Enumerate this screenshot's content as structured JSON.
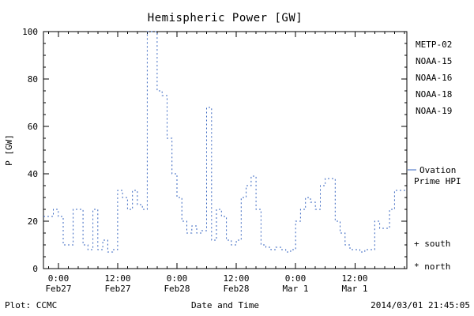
{
  "chart_data": {
    "type": "line",
    "step": true,
    "line_style": "dashed",
    "grid": false,
    "title": "Hemispheric Power [GW]",
    "xlabel": "Date and Time",
    "ylabel": "P [GW]",
    "ylim": [
      0,
      100
    ],
    "y_major_ticks": [
      0,
      20,
      40,
      60,
      80,
      100
    ],
    "y_tick_labels": [
      "0",
      "20",
      "40",
      "60",
      "80",
      "100"
    ],
    "y_minor_tick_step": 5,
    "x_axis_hours_range": [
      -3,
      70.5
    ],
    "x_major_ticks_hours": [
      0,
      12,
      24,
      36,
      48,
      60
    ],
    "x_minor_tick_step_hours": 2,
    "x_ticks": [
      {
        "hours": 0,
        "time": "0:00",
        "date": "Feb27"
      },
      {
        "hours": 12,
        "time": "12:00",
        "date": "Feb27"
      },
      {
        "hours": 24,
        "time": "0:00",
        "date": "Feb28"
      },
      {
        "hours": 36,
        "time": "12:00",
        "date": "Feb28"
      },
      {
        "hours": 48,
        "time": "0:00",
        "date": "Mar 1"
      },
      {
        "hours": 60,
        "time": "12:00",
        "date": "Mar 1"
      }
    ],
    "series": [
      {
        "name": "Ovation Prime HPI",
        "color": "#3a67c0",
        "dash": "2 3",
        "points_hours_gw": [
          [
            -3,
            22
          ],
          [
            -2,
            22
          ],
          [
            -1,
            25
          ],
          [
            0,
            22
          ],
          [
            1,
            10
          ],
          [
            2,
            10
          ],
          [
            3,
            25
          ],
          [
            4,
            25
          ],
          [
            5,
            10
          ],
          [
            6,
            8
          ],
          [
            7,
            25
          ],
          [
            8,
            8
          ],
          [
            9,
            12
          ],
          [
            10,
            7
          ],
          [
            11,
            8
          ],
          [
            12,
            33
          ],
          [
            13,
            30
          ],
          [
            14,
            25
          ],
          [
            15,
            33
          ],
          [
            16,
            27
          ],
          [
            17,
            25
          ],
          [
            18,
            100
          ],
          [
            19,
            100
          ],
          [
            20,
            75
          ],
          [
            21,
            73
          ],
          [
            22,
            55
          ],
          [
            23,
            40
          ],
          [
            24,
            30
          ],
          [
            25,
            20
          ],
          [
            26,
            15
          ],
          [
            27,
            18
          ],
          [
            28,
            15
          ],
          [
            29,
            16
          ],
          [
            30,
            68
          ],
          [
            31,
            12
          ],
          [
            32,
            25
          ],
          [
            33,
            22
          ],
          [
            34,
            12
          ],
          [
            35,
            10
          ],
          [
            36,
            12
          ],
          [
            37,
            30
          ],
          [
            38,
            35
          ],
          [
            39,
            39
          ],
          [
            40,
            25
          ],
          [
            41,
            10
          ],
          [
            42,
            9
          ],
          [
            43,
            8
          ],
          [
            44,
            9
          ],
          [
            45,
            8
          ],
          [
            46,
            7
          ],
          [
            47,
            8
          ],
          [
            48,
            20
          ],
          [
            49,
            25
          ],
          [
            50,
            30
          ],
          [
            51,
            28
          ],
          [
            52,
            25
          ],
          [
            53,
            35
          ],
          [
            54,
            38
          ],
          [
            55,
            38
          ],
          [
            56,
            20
          ],
          [
            57,
            15
          ],
          [
            58,
            10
          ],
          [
            59,
            8
          ],
          [
            60,
            8
          ],
          [
            61,
            7
          ],
          [
            62,
            8
          ],
          [
            63,
            8
          ],
          [
            64,
            20
          ],
          [
            65,
            17
          ],
          [
            66,
            17
          ],
          [
            67,
            25
          ],
          [
            68,
            33
          ],
          [
            69,
            33
          ],
          [
            70,
            33
          ]
        ]
      }
    ],
    "legend": {
      "position": "right-outside",
      "items": [
        {
          "label": "METP-02",
          "color": "#404048"
        },
        {
          "label": "NOAA-15",
          "color": "#2636cc"
        },
        {
          "label": "NOAA-16",
          "color": "#38b8e0"
        },
        {
          "label": "NOAA-18",
          "color": "#7ecb7e"
        },
        {
          "label": "NOAA-19",
          "color": "#f09f4e"
        }
      ]
    },
    "annotations": {
      "ovation_color": "#3a67c0",
      "ovation_line1": "Ovation",
      "ovation_line2": "Prime HPI",
      "south": "+ south",
      "north": "* north"
    }
  },
  "footer": {
    "plot_source": "Plot: CCMC",
    "timestamp": "2014/03/01 21:45:05"
  }
}
